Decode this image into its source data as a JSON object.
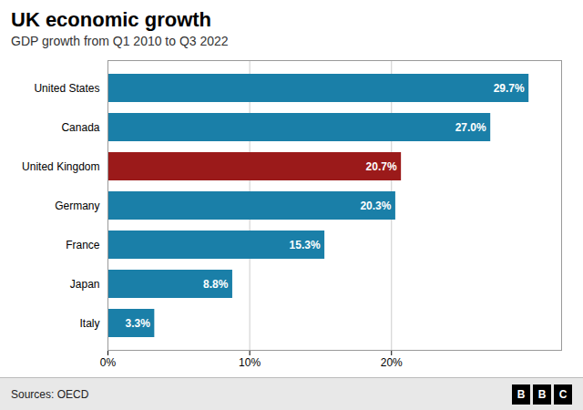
{
  "chart_data": {
    "type": "bar",
    "orientation": "horizontal",
    "title": "UK economic growth",
    "subtitle": "GDP growth from Q1 2010 to Q3 2022",
    "source": "Sources: OECD",
    "logo": "BBC",
    "categories": [
      "United States",
      "Canada",
      "United Kingdom",
      "Germany",
      "France",
      "Japan",
      "Italy"
    ],
    "values": [
      29.7,
      27.0,
      20.7,
      20.3,
      15.3,
      8.8,
      3.3
    ],
    "value_labels": [
      "29.7%",
      "27.0%",
      "20.7%",
      "20.3%",
      "15.3%",
      "8.8%",
      "3.3%"
    ],
    "colors": [
      "#1a7fa8",
      "#1a7fa8",
      "#9b1a1a",
      "#1a7fa8",
      "#1a7fa8",
      "#1a7fa8",
      "#1a7fa8"
    ],
    "data_labels": true,
    "xlim": [
      0,
      32
    ],
    "xticks": [
      {
        "value": 0,
        "label": "0%"
      },
      {
        "value": 10,
        "label": "10%"
      },
      {
        "value": 20,
        "label": "20%"
      }
    ],
    "grid": true
  }
}
